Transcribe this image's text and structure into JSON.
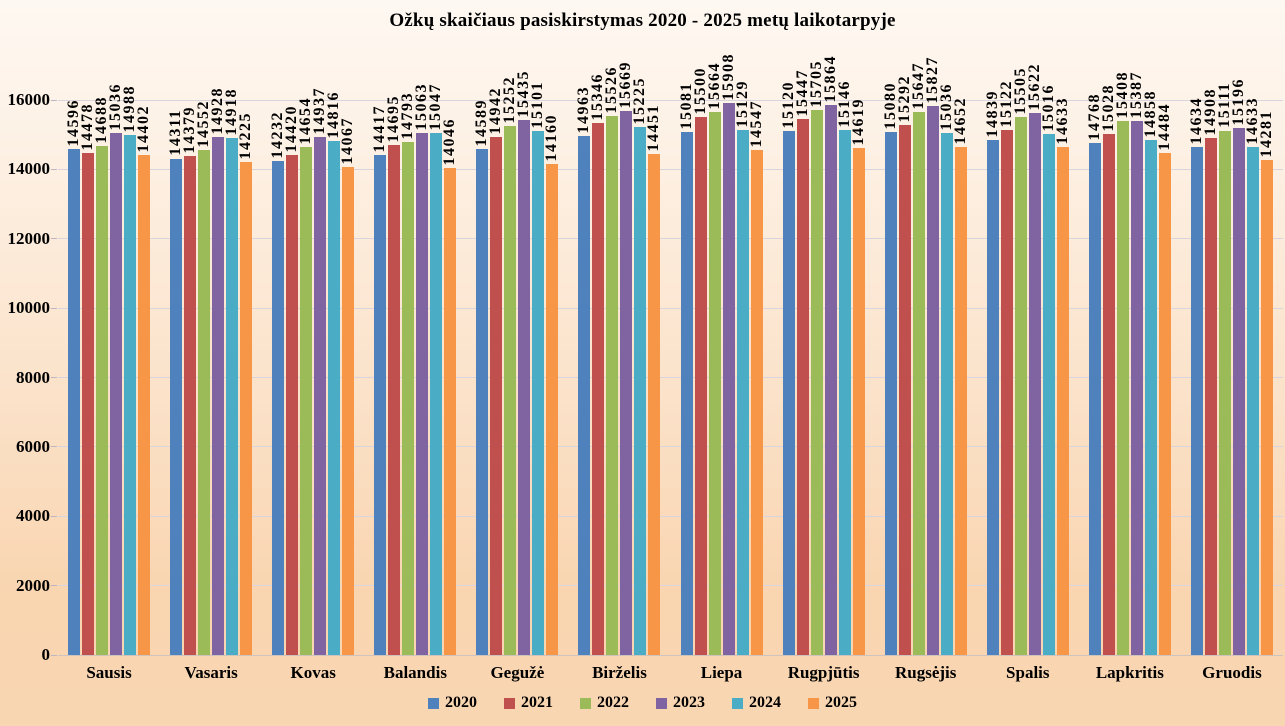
{
  "title": "Ožkų skaičiaus pasiskirstymas 2020 - 2025 metų laikotarpyje",
  "chart_data": {
    "type": "bar",
    "title": "Ožkų skaičiaus pasiskirstymas 2020 - 2025 metų laikotarpyje",
    "categories": [
      "Sausis",
      "Vasaris",
      "Kovas",
      "Balandis",
      "Gegužė",
      "Birželis",
      "Liepa",
      "Rugpjūtis",
      "Rugsėjis",
      "Spalis",
      "Lapkritis",
      "Gruodis"
    ],
    "series": [
      {
        "name": "2020",
        "color": "#4F81BD",
        "values": [
          14596,
          14311,
          14232,
          14417,
          14589,
          14963,
          15081,
          15120,
          15080,
          14839,
          14768,
          14634
        ]
      },
      {
        "name": "2021",
        "color": "#C0504D",
        "values": [
          14478,
          14379,
          14420,
          14695,
          14942,
          15346,
          15500,
          15447,
          15292,
          15122,
          15028,
          14908
        ]
      },
      {
        "name": "2022",
        "color": "#9BBB59",
        "values": [
          14688,
          14552,
          14654,
          14793,
          15252,
          15526,
          15664,
          15705,
          15647,
          15505,
          15408,
          15111
        ]
      },
      {
        "name": "2023",
        "color": "#8064A2",
        "values": [
          15036,
          14928,
          14937,
          15063,
          15435,
          15669,
          15908,
          15864,
          15827,
          15622,
          15387,
          15196
        ]
      },
      {
        "name": "2024",
        "color": "#4BACC6",
        "values": [
          14988,
          14918,
          14816,
          15047,
          15101,
          15225,
          15129,
          15146,
          15036,
          15016,
          14858,
          14633
        ]
      },
      {
        "name": "2025",
        "color": "#F79646",
        "values": [
          14402,
          14225,
          14067,
          14046,
          14160,
          14451,
          14547,
          14619,
          14652,
          14633,
          14484,
          14281
        ]
      }
    ],
    "ylim": [
      0,
      16000
    ],
    "yticks": [
      0,
      2000,
      4000,
      6000,
      8000,
      10000,
      12000,
      14000,
      16000
    ],
    "xlabel": "",
    "ylabel": "",
    "grid": true,
    "bar_value_labels": true,
    "legend_position": "bottom"
  },
  "style": {
    "background_top": "#FEF8F2",
    "background_bottom": "#F9D5B0",
    "gridline_color": "#D9D5DE",
    "text_color": "#000000"
  }
}
